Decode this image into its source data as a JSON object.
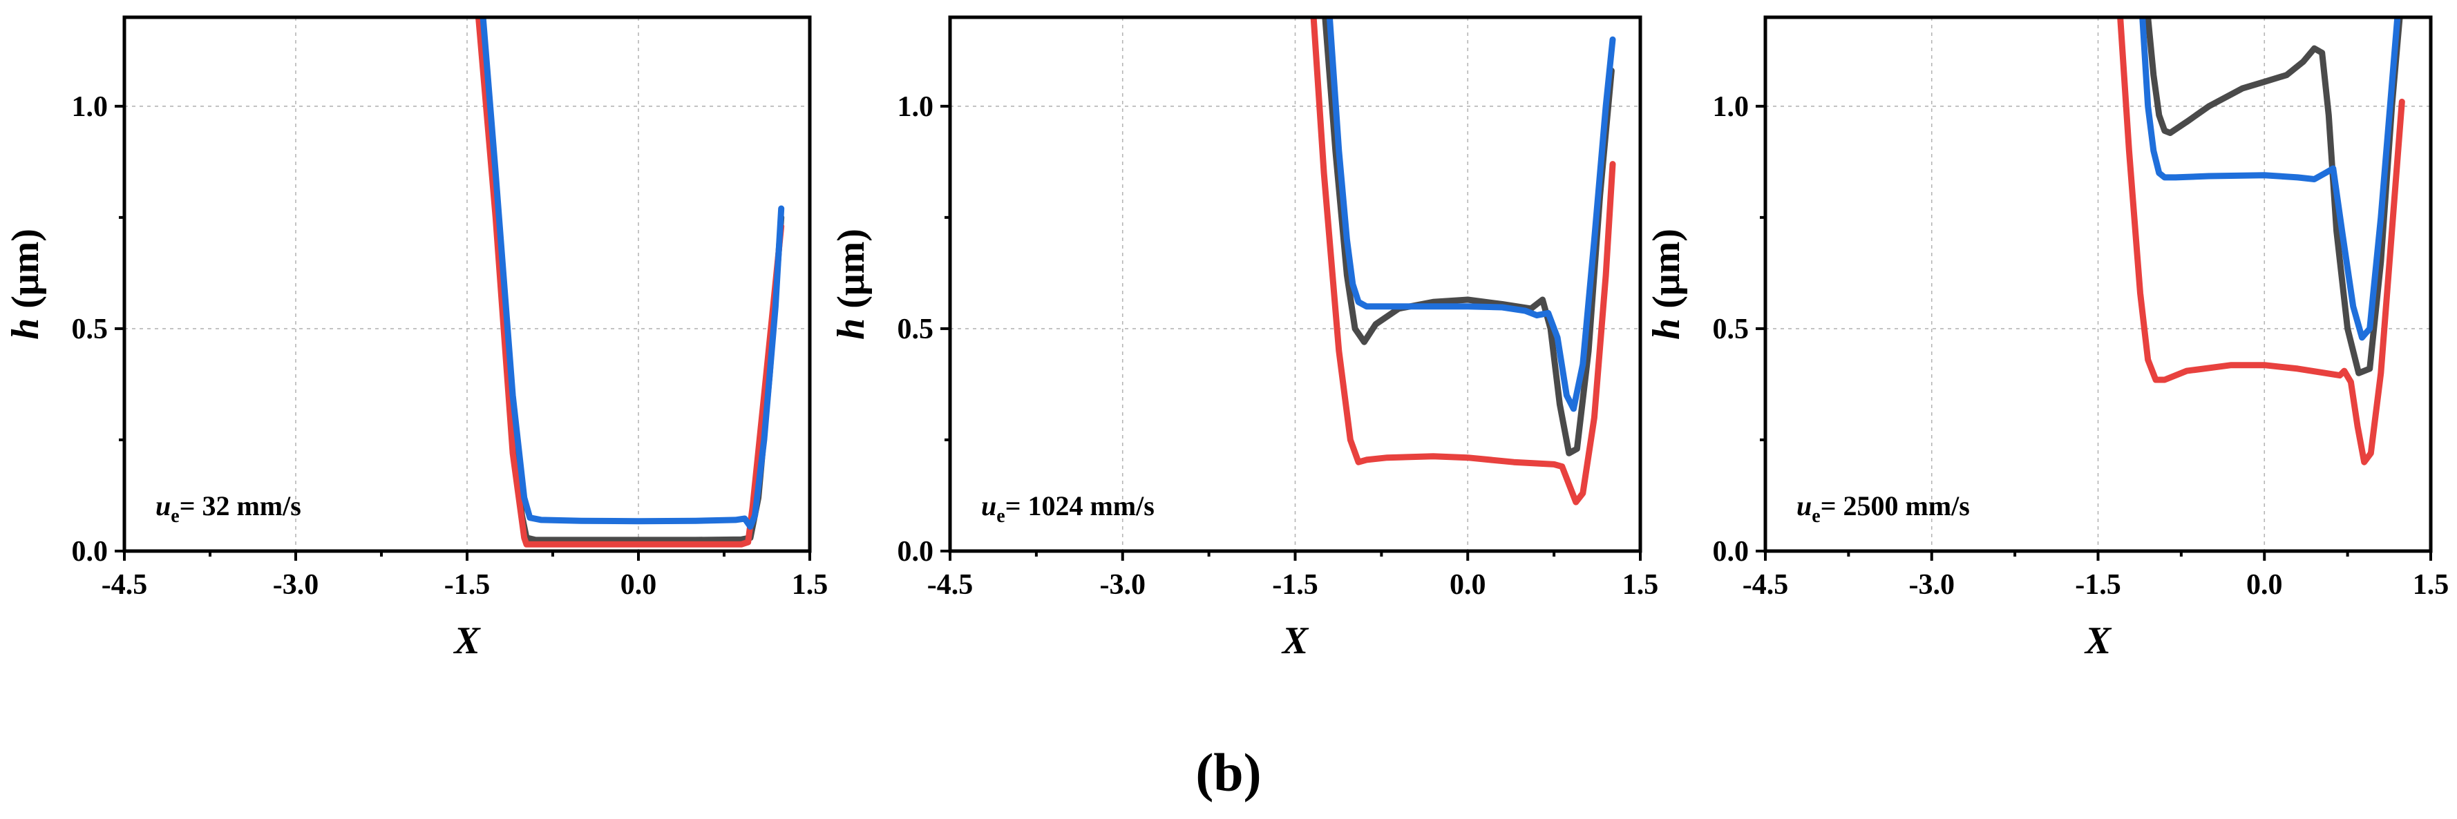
{
  "figure_label": "(b)",
  "colors": {
    "series_dark": "#4a4a4a",
    "series_red": "#e8413e",
    "series_blue": "#1f6fdb",
    "grid": "#b5b5b5",
    "axis": "#000000"
  },
  "chart_data": [
    {
      "type": "line",
      "title": "",
      "annotation": {
        "symbol": "u",
        "subscript": "e",
        "text": "= 32 mm/s"
      },
      "xlabel": "X",
      "ylabel_italic": "h",
      "ylabel_unit": " (μm)",
      "xlim": [
        -4.5,
        1.5
      ],
      "ylim": [
        0.0,
        1.2
      ],
      "xticks": [
        "-4.5",
        "-3.0",
        "-1.5",
        "0.0",
        "1.5"
      ],
      "yticks": [
        "0.0",
        "0.5",
        "1.0"
      ],
      "grid": true,
      "series": [
        {
          "name": "dark",
          "color": "#4a4a4a",
          "x": [
            -1.38,
            -1.25,
            -1.1,
            -1.02,
            -0.98,
            -0.9,
            -0.5,
            0.0,
            0.5,
            0.9,
            0.98,
            1.05,
            1.15,
            1.25
          ],
          "y": [
            1.2,
            0.8,
            0.3,
            0.08,
            0.03,
            0.025,
            0.025,
            0.025,
            0.025,
            0.026,
            0.03,
            0.12,
            0.4,
            0.75
          ]
        },
        {
          "name": "red",
          "color": "#e8413e",
          "x": [
            -1.4,
            -1.25,
            -1.1,
            -1.0,
            -0.98,
            -0.9,
            -0.5,
            0.0,
            0.5,
            0.9,
            0.96,
            1.0,
            1.1,
            1.25
          ],
          "y": [
            1.2,
            0.75,
            0.22,
            0.03,
            0.015,
            0.015,
            0.015,
            0.015,
            0.015,
            0.015,
            0.02,
            0.1,
            0.35,
            0.73
          ]
        },
        {
          "name": "blue",
          "color": "#1f6fdb",
          "x": [
            -1.36,
            -1.25,
            -1.1,
            -1.0,
            -0.95,
            -0.85,
            -0.5,
            0.0,
            0.5,
            0.85,
            0.93,
            0.98,
            1.02,
            1.1,
            1.2,
            1.25
          ],
          "y": [
            1.2,
            0.85,
            0.35,
            0.12,
            0.075,
            0.07,
            0.068,
            0.067,
            0.068,
            0.07,
            0.073,
            0.055,
            0.08,
            0.25,
            0.55,
            0.77
          ]
        }
      ]
    },
    {
      "type": "line",
      "title": "",
      "annotation": {
        "symbol": "u",
        "subscript": "e",
        "text": "= 1024 mm/s"
      },
      "xlabel": "X",
      "ylabel_italic": "h",
      "ylabel_unit": " (μm)",
      "xlim": [
        -4.5,
        1.5
      ],
      "ylim": [
        0.0,
        1.2
      ],
      "xticks": [
        "-4.5",
        "-3.0",
        "-1.5",
        "0.0",
        "1.5"
      ],
      "yticks": [
        "0.0",
        "0.5",
        "1.0"
      ],
      "grid": true,
      "series": [
        {
          "name": "dark",
          "color": "#4a4a4a",
          "x": [
            -1.24,
            -1.15,
            -1.05,
            -0.98,
            -0.9,
            -0.8,
            -0.6,
            -0.3,
            0.0,
            0.3,
            0.55,
            0.65,
            0.72,
            0.8,
            0.88,
            0.95,
            1.05,
            1.15,
            1.25
          ],
          "y": [
            1.2,
            0.9,
            0.62,
            0.5,
            0.47,
            0.51,
            0.545,
            0.56,
            0.565,
            0.555,
            0.545,
            0.565,
            0.5,
            0.33,
            0.22,
            0.23,
            0.45,
            0.8,
            1.08
          ]
        },
        {
          "name": "red",
          "color": "#e8413e",
          "x": [
            -1.34,
            -1.25,
            -1.12,
            -1.02,
            -0.95,
            -0.88,
            -0.7,
            -0.3,
            0.0,
            0.4,
            0.75,
            0.82,
            0.88,
            0.94,
            1.0,
            1.1,
            1.2,
            1.26
          ],
          "y": [
            1.2,
            0.85,
            0.45,
            0.25,
            0.2,
            0.205,
            0.21,
            0.213,
            0.21,
            0.2,
            0.195,
            0.19,
            0.15,
            0.11,
            0.13,
            0.3,
            0.62,
            0.87
          ]
        },
        {
          "name": "blue",
          "color": "#1f6fdb",
          "x": [
            -1.2,
            -1.12,
            -1.05,
            -1.0,
            -0.95,
            -0.88,
            -0.8,
            -0.5,
            0.0,
            0.3,
            0.5,
            0.6,
            0.7,
            0.78,
            0.86,
            0.92,
            1.0,
            1.1,
            1.2,
            1.26
          ],
          "y": [
            1.2,
            0.9,
            0.7,
            0.6,
            0.56,
            0.55,
            0.55,
            0.55,
            0.55,
            0.548,
            0.54,
            0.53,
            0.535,
            0.48,
            0.35,
            0.32,
            0.42,
            0.7,
            1.0,
            1.15
          ]
        }
      ]
    },
    {
      "type": "line",
      "title": "",
      "annotation": {
        "symbol": "u",
        "subscript": "e",
        "text": "= 2500 mm/s"
      },
      "xlabel": "X",
      "ylabel_italic": "h",
      "ylabel_unit": " (μm)",
      "xlim": [
        -4.5,
        1.5
      ],
      "ylim": [
        0.0,
        1.2
      ],
      "xticks": [
        "-4.5",
        "-3.0",
        "-1.5",
        "0.0",
        "1.5"
      ],
      "yticks": [
        "0.0",
        "0.5",
        "1.0"
      ],
      "grid": true,
      "series": [
        {
          "name": "dark",
          "color": "#4a4a4a",
          "x": [
            -1.05,
            -1.0,
            -0.95,
            -0.9,
            -0.85,
            -0.7,
            -0.5,
            -0.2,
            0.0,
            0.2,
            0.35,
            0.45,
            0.52,
            0.58,
            0.65,
            0.75,
            0.85,
            0.95,
            1.05,
            1.15,
            1.22
          ],
          "y": [
            1.2,
            1.07,
            0.98,
            0.945,
            0.94,
            0.965,
            1.0,
            1.04,
            1.055,
            1.07,
            1.1,
            1.13,
            1.12,
            0.98,
            0.72,
            0.5,
            0.4,
            0.41,
            0.65,
            1.0,
            1.2
          ]
        },
        {
          "name": "red",
          "color": "#e8413e",
          "x": [
            -1.3,
            -1.22,
            -1.12,
            -1.05,
            -0.98,
            -0.9,
            -0.7,
            -0.3,
            0.0,
            0.3,
            0.6,
            0.68,
            0.72,
            0.78,
            0.84,
            0.9,
            0.96,
            1.05,
            1.15,
            1.24
          ],
          "y": [
            1.2,
            0.9,
            0.58,
            0.43,
            0.385,
            0.385,
            0.405,
            0.418,
            0.418,
            0.41,
            0.398,
            0.395,
            0.405,
            0.38,
            0.28,
            0.2,
            0.22,
            0.4,
            0.72,
            1.01
          ]
        },
        {
          "name": "blue",
          "color": "#1f6fdb",
          "x": [
            -1.1,
            -1.05,
            -1.0,
            -0.95,
            -0.9,
            -0.8,
            -0.5,
            0.0,
            0.3,
            0.45,
            0.55,
            0.62,
            0.7,
            0.8,
            0.88,
            0.95,
            1.05,
            1.15,
            1.2
          ],
          "y": [
            1.2,
            1.0,
            0.9,
            0.85,
            0.84,
            0.84,
            0.843,
            0.845,
            0.84,
            0.836,
            0.85,
            0.86,
            0.72,
            0.55,
            0.48,
            0.5,
            0.75,
            1.05,
            1.2
          ]
        }
      ]
    }
  ]
}
